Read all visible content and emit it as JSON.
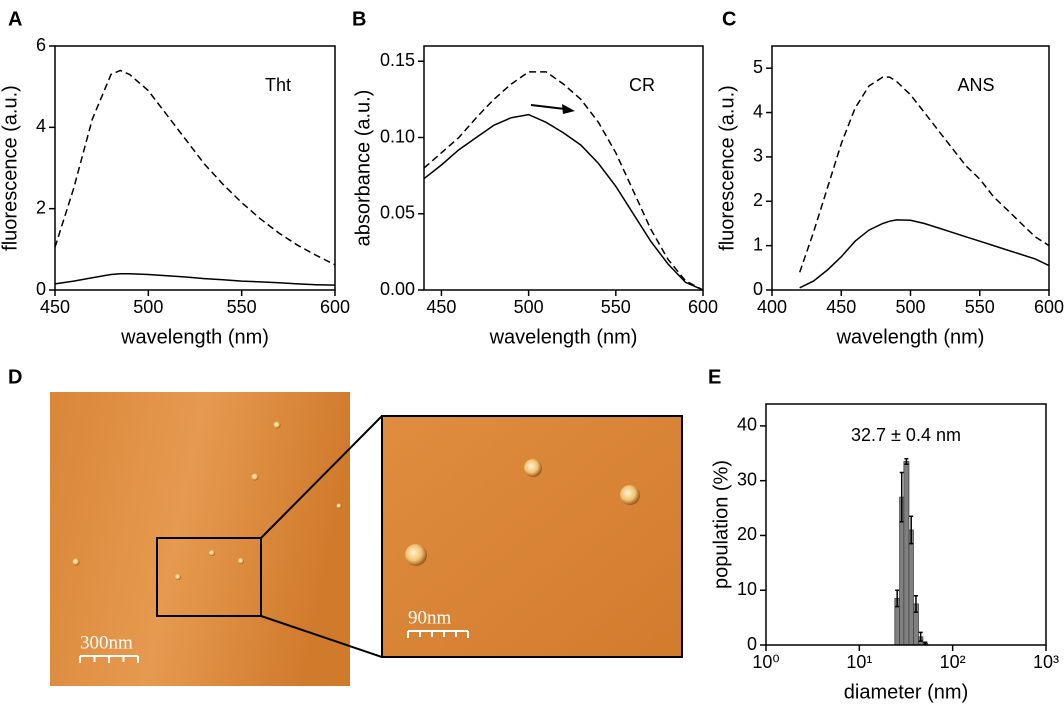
{
  "chart_data": [
    {
      "type": "line",
      "panel": "A",
      "annotation": "Tht",
      "xlabel": "wavelength (nm)",
      "ylabel": "fluorescence (a.u.)",
      "xlim": [
        450,
        600
      ],
      "xticks": [
        450,
        500,
        550,
        600
      ],
      "ylim": [
        0,
        6
      ],
      "yticks": [
        0,
        2,
        4,
        6
      ],
      "x": [
        450,
        460,
        470,
        480,
        485,
        490,
        500,
        510,
        520,
        530,
        540,
        550,
        560,
        570,
        580,
        590,
        600
      ],
      "series": [
        {
          "style": "dashed",
          "color": "#000000",
          "values": [
            1.05,
            2.5,
            4.2,
            5.3,
            5.4,
            5.3,
            4.9,
            4.3,
            3.7,
            3.1,
            2.6,
            2.15,
            1.75,
            1.4,
            1.1,
            0.85,
            0.62
          ]
        },
        {
          "style": "solid",
          "color": "#000000",
          "values": [
            0.15,
            0.22,
            0.3,
            0.38,
            0.4,
            0.4,
            0.38,
            0.35,
            0.32,
            0.28,
            0.25,
            0.22,
            0.2,
            0.18,
            0.15,
            0.13,
            0.12
          ]
        }
      ]
    },
    {
      "type": "line",
      "panel": "B",
      "annotation": "CR",
      "xlabel": "wavelength (nm)",
      "ylabel": "absorbance (a.u.)",
      "xlim": [
        440,
        600
      ],
      "xticks": [
        450,
        500,
        550,
        600
      ],
      "ylim": [
        0,
        0.16
      ],
      "yticks": [
        {
          "value": 0,
          "label": "0.00"
        },
        0.05,
        {
          "value": 0.1,
          "label": "0.10"
        },
        0.15
      ],
      "x": [
        440,
        450,
        460,
        470,
        480,
        490,
        500,
        510,
        520,
        530,
        540,
        550,
        560,
        570,
        580,
        590,
        600
      ],
      "series": [
        {
          "style": "dashed",
          "color": "#000000",
          "values": [
            0.08,
            0.09,
            0.1,
            0.113,
            0.125,
            0.135,
            0.143,
            0.143,
            0.135,
            0.125,
            0.11,
            0.09,
            0.065,
            0.04,
            0.02,
            0.006,
            0.0
          ]
        },
        {
          "style": "solid",
          "color": "#000000",
          "values": [
            0.073,
            0.082,
            0.092,
            0.1,
            0.108,
            0.113,
            0.115,
            0.11,
            0.103,
            0.095,
            0.083,
            0.068,
            0.05,
            0.032,
            0.017,
            0.005,
            0.0
          ]
        }
      ]
    },
    {
      "type": "line",
      "panel": "C",
      "annotation": "ANS",
      "xlabel": "wavelength (nm)",
      "ylabel": "fluorescence (a.u.)",
      "xlim": [
        400,
        600
      ],
      "xticks": [
        400,
        450,
        500,
        550,
        600
      ],
      "ylim": [
        0,
        5.5
      ],
      "yticks": [
        0,
        1,
        2,
        3,
        4,
        5
      ],
      "x": [
        420,
        430,
        440,
        450,
        460,
        470,
        480,
        485,
        490,
        500,
        510,
        520,
        530,
        540,
        550,
        560,
        570,
        580,
        590,
        600
      ],
      "series": [
        {
          "style": "dashed",
          "color": "#000000",
          "values": [
            0.4,
            1.3,
            2.3,
            3.3,
            4.1,
            4.6,
            4.8,
            4.8,
            4.7,
            4.4,
            4.0,
            3.6,
            3.2,
            2.8,
            2.5,
            2.1,
            1.8,
            1.5,
            1.2,
            1.0
          ]
        },
        {
          "style": "solid",
          "color": "#000000",
          "values": [
            0.05,
            0.2,
            0.45,
            0.75,
            1.1,
            1.35,
            1.5,
            1.55,
            1.58,
            1.57,
            1.5,
            1.4,
            1.3,
            1.2,
            1.1,
            1.0,
            0.9,
            0.8,
            0.7,
            0.55
          ]
        }
      ]
    },
    {
      "type": "histogram",
      "panel": "E",
      "annotation": "32.7 ± 0.4 nm",
      "xlabel": "diameter (nm)",
      "ylabel": "population (%)",
      "xscale": "log",
      "xlim": [
        1,
        1000
      ],
      "xticks": [
        {
          "value": 1,
          "label": "10⁰"
        },
        {
          "value": 10,
          "label": "10¹"
        },
        {
          "value": 100,
          "label": "10²"
        },
        {
          "value": 1000,
          "label": "10³"
        }
      ],
      "ylim": [
        0,
        44
      ],
      "yticks": [
        0,
        10,
        20,
        30,
        40
      ],
      "color": "#808080",
      "bins": [
        24,
        27,
        30,
        34,
        38,
        43,
        48,
        54
      ],
      "values": [
        8.5,
        27,
        33.5,
        21,
        7.5,
        1.5,
        0.3
      ],
      "errors": [
        1.5,
        4.5,
        0.5,
        2.5,
        1.5,
        0.8,
        0.2
      ]
    }
  ],
  "afm": {
    "panel": "D",
    "scale_bars": [
      "300nm",
      "90nm"
    ]
  }
}
